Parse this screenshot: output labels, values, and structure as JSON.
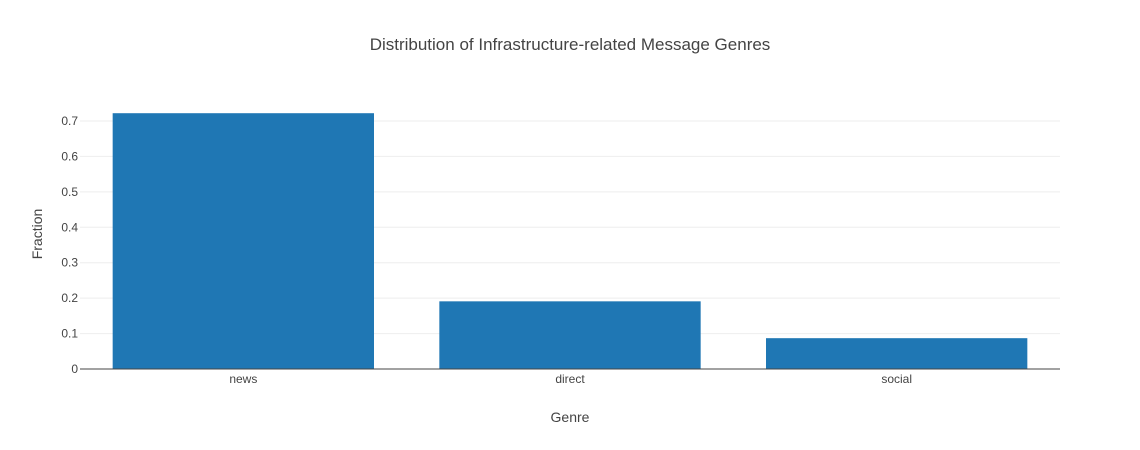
{
  "chart_data": {
    "type": "bar",
    "title": "Distribution of Infrastructure-related Message Genres",
    "xlabel": "Genre",
    "ylabel": "Fraction",
    "categories": [
      "news",
      "direct",
      "social"
    ],
    "values": [
      0.722,
      0.191,
      0.087
    ],
    "ylim": [
      0,
      0.7
    ],
    "yticks": [
      0,
      0.1,
      0.2,
      0.3,
      0.4,
      0.5,
      0.6,
      0.7
    ],
    "ytick_labels": [
      "0",
      "0.1",
      "0.2",
      "0.3",
      "0.4",
      "0.5",
      "0.6",
      "0.7"
    ],
    "grid": true,
    "bar_color": "#1f77b4",
    "grid_color": "#eeeeee",
    "axis_color": "#444444"
  }
}
